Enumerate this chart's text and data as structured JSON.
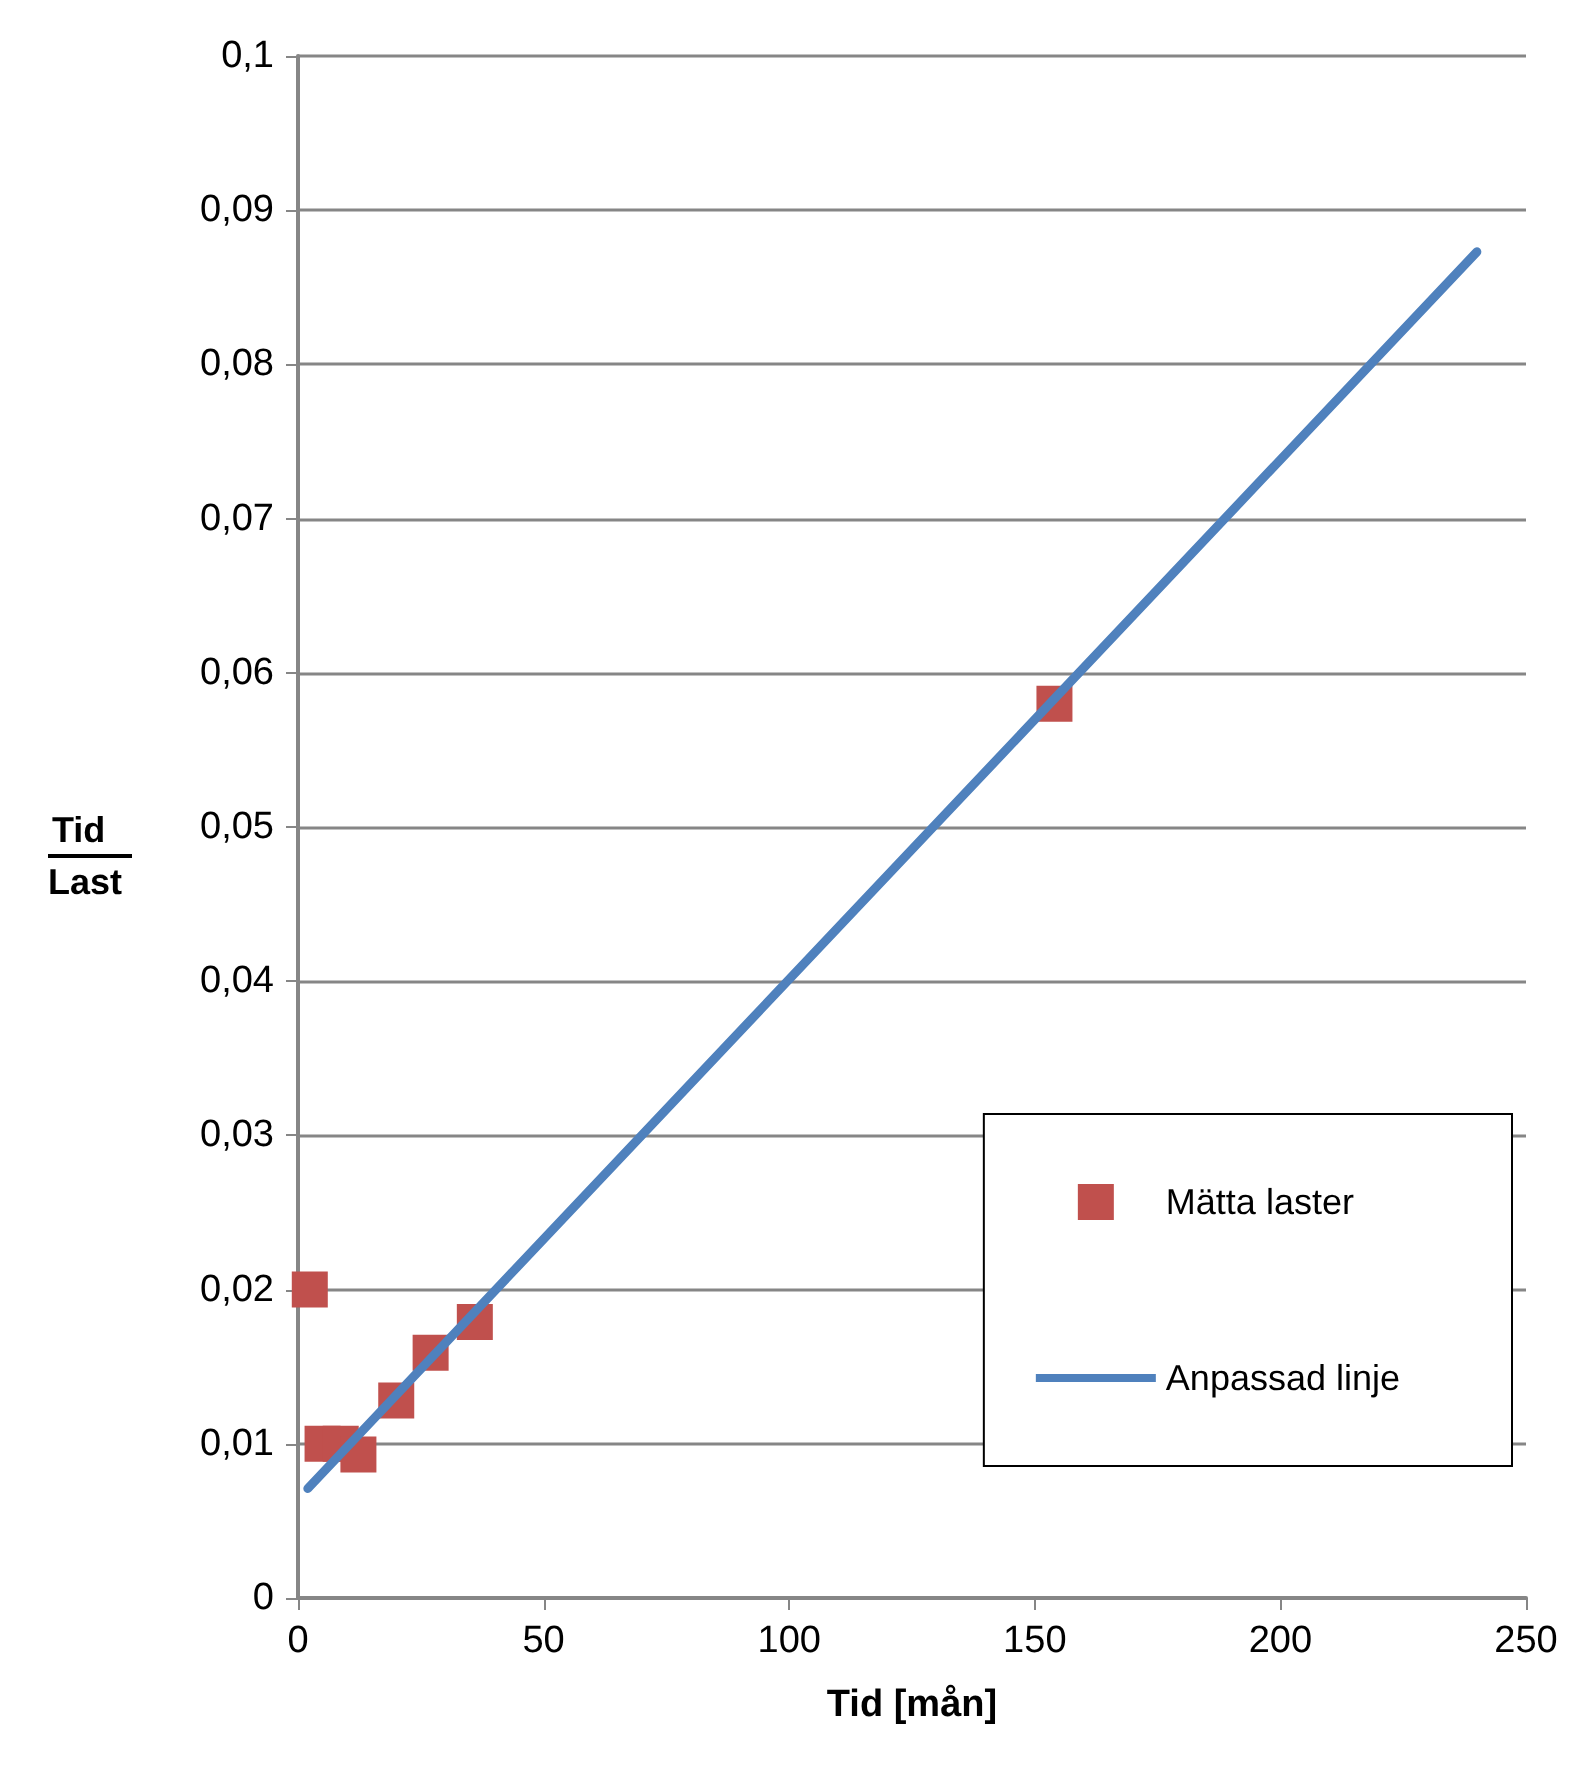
{
  "chart_data": {
    "type": "scatter",
    "xlabel": "Tid [mån]",
    "ylabel": "Tid\nLast",
    "xlim": [
      0,
      250
    ],
    "xticks": [
      0,
      50,
      100,
      150,
      200,
      250
    ],
    "ylim": [
      0,
      0.1
    ],
    "yticks": [
      0,
      {
        "value": 0.01,
        "label": "0,01"
      },
      {
        "value": 0.02,
        "label": "0,02"
      },
      {
        "value": 0.03,
        "label": "0,03"
      },
      {
        "value": 0.04,
        "label": "0,04"
      },
      {
        "value": 0.05,
        "label": "0,05"
      },
      {
        "value": 0.06,
        "label": "0,06"
      },
      {
        "value": 0.07,
        "label": "0,07"
      },
      {
        "value": 0.08,
        "label": "0,08"
      },
      {
        "value": 0.09,
        "label": "0,09"
      },
      {
        "value": 0.1,
        "label": "0,1"
      }
    ],
    "grid": "y",
    "legend": "bottom right",
    "marker": "square",
    "series": [
      {
        "name": "Mätta laster",
        "color": "#c0504d",
        "x": [
          2.4,
          5,
          8.7,
          12.3,
          20,
          27,
          36,
          154
        ],
        "values": [
          0.02,
          0.01,
          0.01,
          0.0093,
          0.0128,
          0.0159,
          0.0179,
          0.058
        ]
      },
      {
        "name": "Anpassad linje",
        "type": "line",
        "color": "#4f81bd",
        "marker": "none",
        "line_style": "solid",
        "x": [
          2,
          240
        ],
        "values": [
          0.0071,
          0.0873
        ]
      }
    ]
  }
}
